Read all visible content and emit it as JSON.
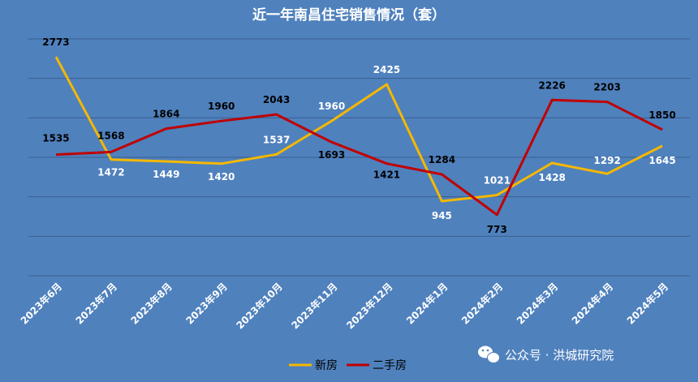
{
  "chart_data": {
    "type": "line",
    "title": "近一年南昌住宅销售情况（套）",
    "categories": [
      "2023年6月",
      "2023年7月",
      "2023年8月",
      "2023年9月",
      "2023年10月",
      "2023年11月",
      "2023年12月",
      "2024年1月",
      "2024年2月",
      "2024年3月",
      "2024年4月",
      "2024年5月"
    ],
    "series": [
      {
        "name": "新房",
        "color": "#f5b800",
        "values": [
          2773,
          1472,
          1449,
          1420,
          1537,
          1960,
          2425,
          945,
          1021,
          1428,
          1292,
          1645
        ]
      },
      {
        "name": "二手房",
        "color": "#c00000",
        "values": [
          1535,
          1568,
          1864,
          1960,
          2043,
          1693,
          1421,
          1284,
          773,
          2226,
          2203,
          1850
        ]
      }
    ],
    "ylim": [
      0,
      3000
    ],
    "grid": true,
    "legend": "bottom-center",
    "xlabel": "",
    "ylabel": ""
  },
  "watermark": {
    "text": "公众号 · 洪城研究院",
    "icon": "wechat-icon"
  }
}
